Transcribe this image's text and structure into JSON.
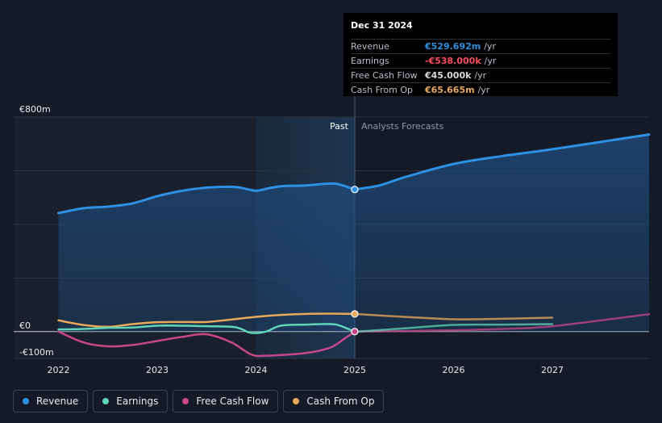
{
  "chart_data": {
    "type": "line",
    "title": "",
    "y_unit": "€m",
    "ylim": [
      -100,
      800
    ],
    "y_tick_labels": [
      {
        "value": 800,
        "label": "€800m"
      },
      {
        "value": 0,
        "label": "€0"
      },
      {
        "value": -100,
        "label": "-€100m"
      }
    ],
    "y_gridlines": [
      800,
      600,
      400,
      200,
      0,
      -100
    ],
    "xlim": [
      2021.8,
      2027.98
    ],
    "x_ticks": [
      2022,
      2023,
      2024,
      2025,
      2026,
      2027
    ],
    "x_tick_labels": [
      "2022",
      "2023",
      "2024",
      "2025",
      "2026",
      "2027"
    ],
    "past_label": "Past",
    "forecast_label": "Analysts Forecasts",
    "past_end": 2025.0,
    "highlight_start": 2024.0,
    "series": [
      {
        "name": "Revenue",
        "color": "#2f8fe0",
        "past": [
          [
            2022.0,
            442
          ],
          [
            2022.25,
            460
          ],
          [
            2022.5,
            466
          ],
          [
            2022.75,
            478
          ],
          [
            2023.0,
            505
          ],
          [
            2023.25,
            525
          ],
          [
            2023.5,
            537
          ],
          [
            2023.75,
            540
          ],
          [
            2023.85,
            536
          ],
          [
            2024.0,
            525
          ],
          [
            2024.1,
            532
          ],
          [
            2024.25,
            542
          ],
          [
            2024.5,
            545
          ],
          [
            2024.75,
            552
          ],
          [
            2024.85,
            548
          ],
          [
            2025.0,
            530
          ]
        ],
        "forecast": [
          [
            2025.0,
            530
          ],
          [
            2025.25,
            545
          ],
          [
            2025.5,
            575
          ],
          [
            2026.0,
            625
          ],
          [
            2026.5,
            655
          ],
          [
            2027.0,
            680
          ],
          [
            2027.98,
            735
          ]
        ]
      },
      {
        "name": "Earnings",
        "color": "#5fd4b8",
        "past": [
          [
            2022.0,
            8
          ],
          [
            2022.25,
            10
          ],
          [
            2022.5,
            14
          ],
          [
            2022.75,
            15
          ],
          [
            2023.0,
            22
          ],
          [
            2023.25,
            22
          ],
          [
            2023.5,
            20
          ],
          [
            2023.75,
            18
          ],
          [
            2023.85,
            10
          ],
          [
            2023.95,
            -5
          ],
          [
            2024.1,
            0
          ],
          [
            2024.25,
            22
          ],
          [
            2024.5,
            26
          ],
          [
            2024.75,
            28
          ],
          [
            2024.85,
            22
          ],
          [
            2025.0,
            -0.5
          ]
        ],
        "forecast": [
          [
            2025.0,
            -0.5
          ],
          [
            2025.5,
            12
          ],
          [
            2026.0,
            25
          ],
          [
            2026.5,
            26
          ],
          [
            2027.0,
            28
          ]
        ]
      },
      {
        "name": "Free Cash Flow",
        "color": "#c8478a",
        "past": [
          [
            2022.0,
            0
          ],
          [
            2022.25,
            -40
          ],
          [
            2022.5,
            -55
          ],
          [
            2022.75,
            -50
          ],
          [
            2023.0,
            -35
          ],
          [
            2023.25,
            -20
          ],
          [
            2023.5,
            -10
          ],
          [
            2023.75,
            -40
          ],
          [
            2023.95,
            -85
          ],
          [
            2024.1,
            -90
          ],
          [
            2024.5,
            -80
          ],
          [
            2024.75,
            -60
          ],
          [
            2024.9,
            -25
          ],
          [
            2025.0,
            0.045
          ]
        ],
        "forecast": [
          [
            2025.0,
            0.045
          ],
          [
            2025.5,
            2
          ],
          [
            2026.0,
            5
          ],
          [
            2026.5,
            10
          ],
          [
            2027.0,
            20
          ],
          [
            2027.98,
            65
          ]
        ]
      },
      {
        "name": "Cash From Op",
        "color": "#e9a95a",
        "past": [
          [
            2022.0,
            42
          ],
          [
            2022.25,
            25
          ],
          [
            2022.5,
            18
          ],
          [
            2022.75,
            28
          ],
          [
            2023.0,
            35
          ],
          [
            2023.25,
            36
          ],
          [
            2023.5,
            36
          ],
          [
            2023.75,
            45
          ],
          [
            2024.0,
            55
          ],
          [
            2024.25,
            62
          ],
          [
            2024.5,
            66
          ],
          [
            2024.75,
            67
          ],
          [
            2025.0,
            66
          ]
        ],
        "forecast": [
          [
            2025.0,
            66
          ],
          [
            2025.5,
            55
          ],
          [
            2026.0,
            46
          ],
          [
            2026.5,
            48
          ],
          [
            2027.0,
            52
          ]
        ]
      }
    ],
    "highlight_points": [
      {
        "series": "Revenue",
        "x": 2025.0,
        "y": 530
      },
      {
        "series": "Cash From Op",
        "x": 2025.0,
        "y": 66
      },
      {
        "series": "Free Cash Flow",
        "x": 2025.0,
        "y": 0.045
      }
    ]
  },
  "tooltip": {
    "date": "Dec 31 2024",
    "rows": [
      {
        "label": "Revenue",
        "value": "€529.692m",
        "unit": "/yr",
        "color": "#2f8fe0"
      },
      {
        "label": "Earnings",
        "value": "-€538.000k",
        "unit": "/yr",
        "color": "#ff4d5a"
      },
      {
        "label": "Free Cash Flow",
        "value": "€45.000k",
        "unit": "/yr",
        "color": "#d9d9d9"
      },
      {
        "label": "Cash From Op",
        "value": "€65.665m",
        "unit": "/yr",
        "color": "#e9a95a"
      }
    ]
  },
  "legend": [
    {
      "label": "Revenue",
      "color": "#2f8fe0"
    },
    {
      "label": "Earnings",
      "color": "#5fd4b8"
    },
    {
      "label": "Free Cash Flow",
      "color": "#c8478a"
    },
    {
      "label": "Cash From Op",
      "color": "#e9a95a"
    }
  ]
}
